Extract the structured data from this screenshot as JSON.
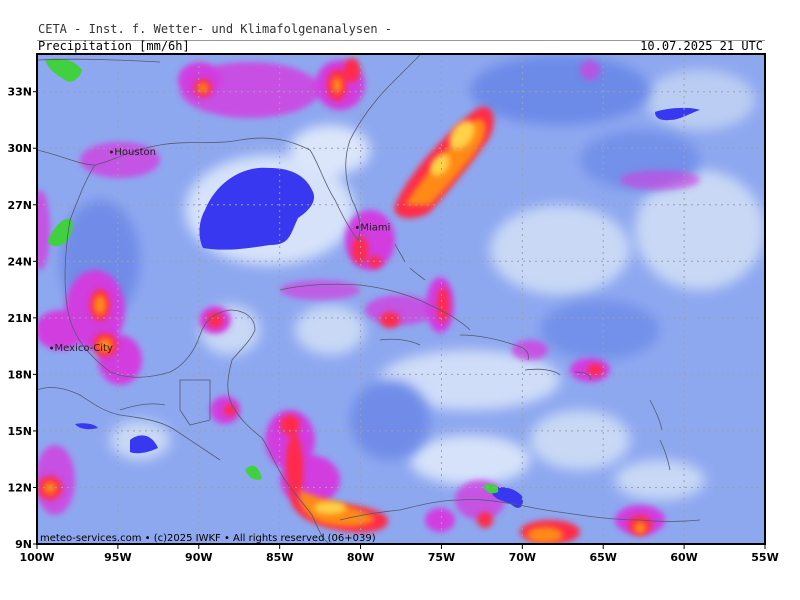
{
  "header": {
    "title": "CETA - Inst. f. Wetter- und Klimafolgenanalysen -",
    "parameter": "Precipitation [mm/6h]",
    "valid_time": "10.07.2025 21 UTC"
  },
  "map": {
    "credit": "meteo-services.com • (c)2025 IWKF • All rights reserved (06+039)",
    "lon_range": [
      -100,
      -55
    ],
    "lat_range": [
      9,
      35
    ],
    "lon_ticks": [
      {
        "value": -100,
        "label": "100W"
      },
      {
        "value": -95,
        "label": "95W"
      },
      {
        "value": -90,
        "label": "90W"
      },
      {
        "value": -85,
        "label": "85W"
      },
      {
        "value": -80,
        "label": "80W"
      },
      {
        "value": -75,
        "label": "75W"
      },
      {
        "value": -70,
        "label": "70W"
      },
      {
        "value": -65,
        "label": "65W"
      },
      {
        "value": -60,
        "label": "60W"
      },
      {
        "value": -55,
        "label": "55W"
      }
    ],
    "lat_ticks": [
      {
        "value": 9,
        "label": "9N"
      },
      {
        "value": 12,
        "label": "12N"
      },
      {
        "value": 15,
        "label": "15N"
      },
      {
        "value": 18,
        "label": "18N"
      },
      {
        "value": 21,
        "label": "21N"
      },
      {
        "value": 24,
        "label": "24N"
      },
      {
        "value": 27,
        "label": "27N"
      },
      {
        "value": 30,
        "label": "30N"
      },
      {
        "value": 33,
        "label": "33N"
      }
    ],
    "cities": [
      {
        "name": "Houston",
        "lon": -95.4,
        "lat": 29.8
      },
      {
        "name": "Miami",
        "lon": -80.2,
        "lat": 25.8
      },
      {
        "name": "Mexico-City",
        "lon": -99.1,
        "lat": 19.4
      }
    ],
    "colors": {
      "background": "#8ea8f0",
      "light": "#c8d8f5",
      "medium": "#6f8ce8",
      "dry": "#3838f0",
      "magenta": "#d23ee0",
      "red": "#ff2a4a",
      "orange": "#ff8a18",
      "yellow": "#ffd24a",
      "green": "#40d040",
      "grid": "#9aa0b0",
      "coast": "#555a70"
    }
  }
}
